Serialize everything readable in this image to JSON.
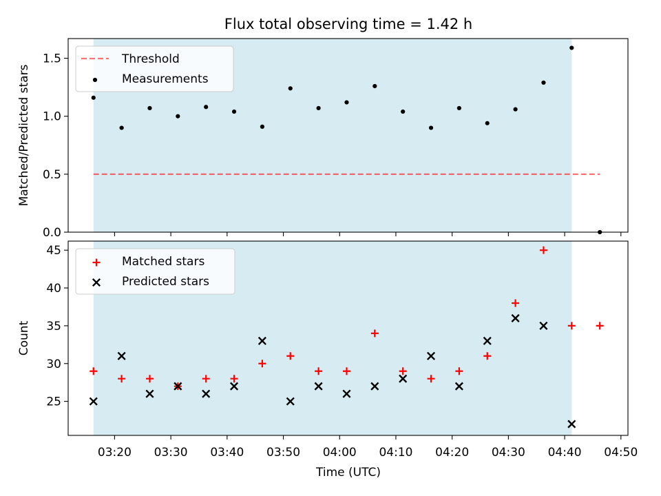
{
  "title": "Flux total observing time = 1.42 h",
  "xlabel": "Time (UTC)",
  "x_tick_labels": [
    "03:20",
    "03:30",
    "03:40",
    "03:50",
    "04:00",
    "04:10",
    "04:20",
    "04:30",
    "04:40",
    "04:50"
  ],
  "colors": {
    "span": "#add8e6",
    "threshold": "#ff0000",
    "measurements": "#000000",
    "matched": "#ff0000",
    "predicted": "#000000"
  },
  "chart_data": [
    {
      "type": "scatter",
      "ylabel": "Matched/Predicted stars",
      "xlim": [
        "03:11:45",
        "04:51:15"
      ],
      "ylim": [
        0,
        1.67
      ],
      "y_ticks": [
        "0.0",
        "0.5",
        "1.0",
        "1.5"
      ],
      "observing_span": [
        "03:16:15",
        "04:41:15"
      ],
      "legend": {
        "position": "top-left",
        "entries": [
          "Threshold",
          "Measurements"
        ]
      },
      "threshold": {
        "name": "Threshold",
        "y": 0.5,
        "x_range": [
          "03:16:15",
          "04:46:15"
        ],
        "style": "dashed"
      },
      "series": [
        {
          "name": "Measurements",
          "marker": "dot",
          "x": [
            "03:16:15",
            "03:21:15",
            "03:26:15",
            "03:31:15",
            "03:36:15",
            "03:41:15",
            "03:46:15",
            "03:51:15",
            "03:56:15",
            "04:01:15",
            "04:06:15",
            "04:11:15",
            "04:16:15",
            "04:21:15",
            "04:26:15",
            "04:31:15",
            "04:36:15",
            "04:41:15",
            "04:46:15"
          ],
          "y": [
            1.16,
            0.9,
            1.07,
            1.0,
            1.08,
            1.04,
            0.91,
            1.24,
            1.07,
            1.12,
            1.26,
            1.04,
            0.9,
            1.07,
            0.94,
            1.06,
            1.29,
            1.59,
            0.0
          ]
        }
      ]
    },
    {
      "type": "scatter",
      "ylabel": "Count",
      "xlim": [
        "03:11:45",
        "04:51:15"
      ],
      "ylim": [
        20.5,
        46.2
      ],
      "y_ticks": [
        "25",
        "30",
        "35",
        "40",
        "45"
      ],
      "observing_span": [
        "03:16:15",
        "04:41:15"
      ],
      "legend": {
        "position": "top-left",
        "entries": [
          "Matched stars",
          "Predicted stars"
        ]
      },
      "series": [
        {
          "name": "Matched stars",
          "marker": "plus",
          "x": [
            "03:16:15",
            "03:21:15",
            "03:26:15",
            "03:31:15",
            "03:36:15",
            "03:41:15",
            "03:46:15",
            "03:51:15",
            "03:56:15",
            "04:01:15",
            "04:06:15",
            "04:11:15",
            "04:16:15",
            "04:21:15",
            "04:26:15",
            "04:31:15",
            "04:36:15",
            "04:41:15",
            "04:46:15"
          ],
          "y": [
            29,
            28,
            28,
            27,
            28,
            28,
            30,
            31,
            29,
            29,
            34,
            29,
            28,
            29,
            31,
            38,
            45,
            35,
            35
          ]
        },
        {
          "name": "Predicted stars",
          "marker": "x",
          "x": [
            "03:16:15",
            "03:21:15",
            "03:26:15",
            "03:31:15",
            "03:36:15",
            "03:41:15",
            "03:46:15",
            "03:51:15",
            "03:56:15",
            "04:01:15",
            "04:06:15",
            "04:11:15",
            "04:16:15",
            "04:21:15",
            "04:26:15",
            "04:31:15",
            "04:36:15",
            "04:41:15"
          ],
          "y": [
            25,
            31,
            26,
            27,
            26,
            27,
            33,
            25,
            27,
            26,
            27,
            28,
            31,
            27,
            33,
            36,
            35,
            22
          ]
        }
      ]
    }
  ]
}
